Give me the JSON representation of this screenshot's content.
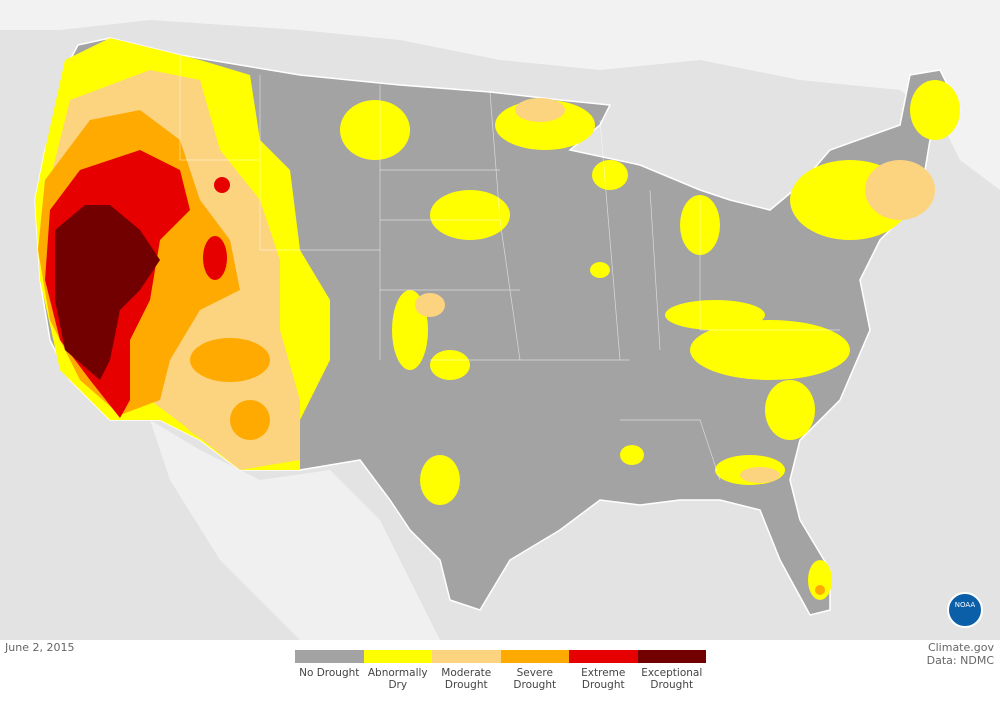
{
  "date": "June 2, 2015",
  "credit": {
    "site": "Climate.gov",
    "source": "Data: NDMC"
  },
  "logo": "NOAA",
  "legend": [
    {
      "label": "No Drought",
      "color": "#a3a3a3"
    },
    {
      "label": "Abnormally Dry",
      "color": "#ffff00"
    },
    {
      "label": "Moderate Drought",
      "color": "#fcd37f"
    },
    {
      "label": "Severe Drought",
      "color": "#ffaa00"
    },
    {
      "label": "Extreme Drought",
      "color": "#e60000"
    },
    {
      "label": "Exceptional Drought",
      "color": "#730000"
    }
  ]
}
